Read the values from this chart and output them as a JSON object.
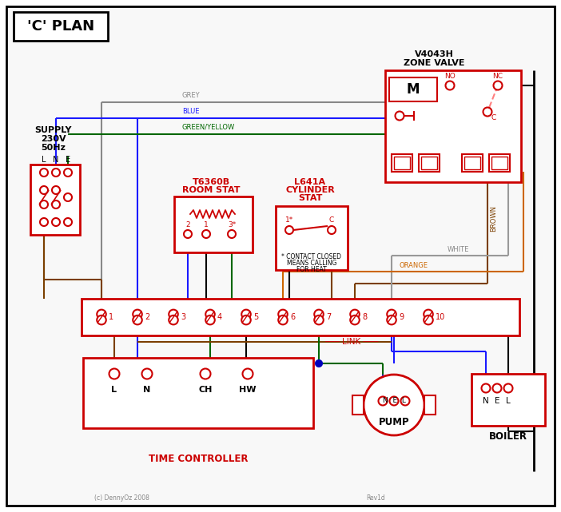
{
  "title": "'C' PLAN",
  "bg_color": "#ffffff",
  "red": "#cc0000",
  "blue": "#1a1aff",
  "green": "#006600",
  "grey": "#888888",
  "brown": "#7B3F00",
  "orange": "#cc6600",
  "white_wire": "#999999",
  "black": "#000000",
  "pink_dash": "#ff8080",
  "time_ctrl_label": "TIME CONTROLLER",
  "pump_label": "PUMP",
  "boiler_label": "BOILER",
  "link_label": "LINK",
  "terminal_labels": [
    "1",
    "2",
    "3",
    "4",
    "5",
    "6",
    "7",
    "8",
    "9",
    "10"
  ],
  "copyright": "(c) DennyOz 2008",
  "rev": "Rev1d"
}
